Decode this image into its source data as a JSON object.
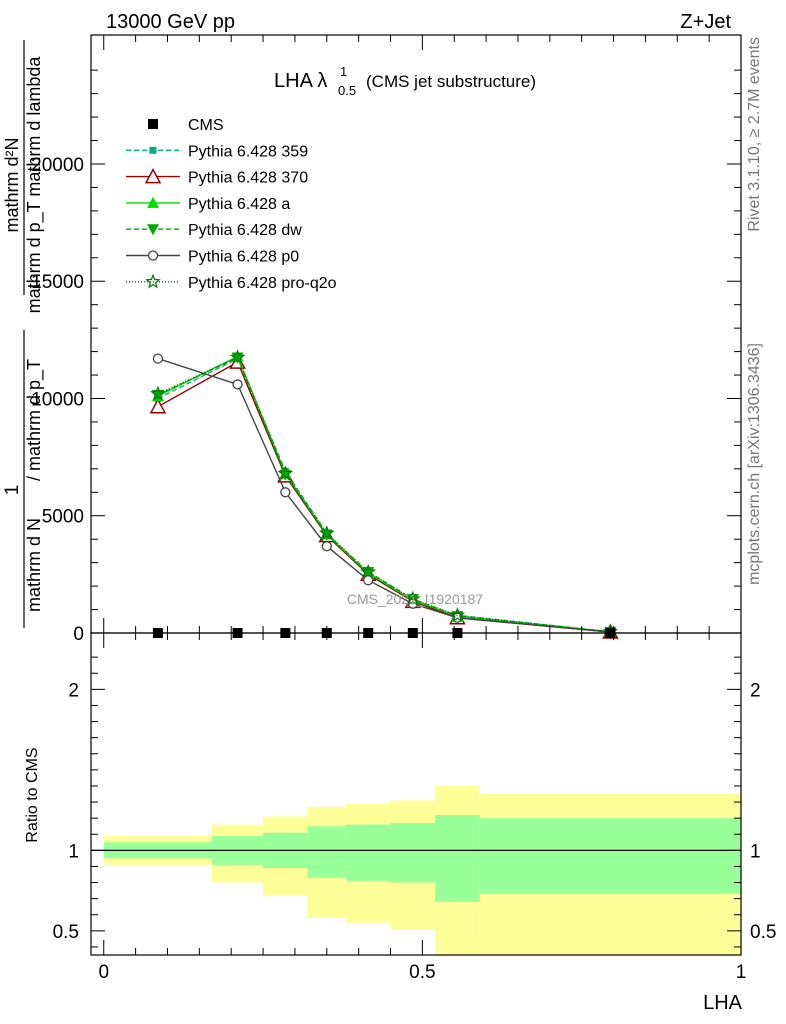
{
  "header": {
    "left": "13000 GeV pp",
    "right": "Z+Jet"
  },
  "side_labels": {
    "rivet": "Rivet 3.1.10, ≥ 2.7M events",
    "mcplots": "mcplots.cern.ch [arXiv:1306.3436]"
  },
  "watermark": "CMS_2021_I1920187",
  "chart_data": [
    {
      "type": "line",
      "title_main": "LHA λ",
      "title_sup": "1",
      "title_sub": "0.5",
      "title_suffix": "(CMS jet substructure)",
      "ylabel": {
        "left_num": "1",
        "left_den": "mathrm d N",
        "frac_num": "mathrm d²N",
        "frac_den": "mathrm d p_T mathrm d lambda",
        "mid": "/ mathrm d p_T"
      },
      "xlim": [
        -0.02,
        1.0
      ],
      "ylim": [
        0,
        25500
      ],
      "yticks": [
        0,
        5000,
        10000,
        15000,
        20000
      ],
      "ytick_labels": [
        "0",
        "5000",
        "10000",
        "15000",
        "20000"
      ],
      "x": [
        0.085,
        0.21,
        0.285,
        0.35,
        0.415,
        0.485,
        0.555,
        0.795
      ],
      "legend_position": "top-left",
      "series": [
        {
          "name": "CMS",
          "color": "#000000",
          "marker": "square",
          "dash": "",
          "values": [
            0,
            0,
            0,
            0,
            0,
            0,
            0,
            0
          ]
        },
        {
          "name": "Pythia 6.428 359",
          "color": "#00b37a",
          "marker": "smallsquare",
          "dash": "5,3",
          "values": [
            10000,
            11700,
            6900,
            4250,
            2550,
            1400,
            750,
            50
          ]
        },
        {
          "name": "Pythia 6.428 370",
          "color": "#990000",
          "marker": "triangle-open",
          "dash": "",
          "values": [
            9650,
            11550,
            6700,
            4150,
            2500,
            1350,
            650,
            40
          ]
        },
        {
          "name": "Pythia 6.428 a",
          "color": "#00dd00",
          "marker": "triangle",
          "dash": "",
          "values": [
            10100,
            11800,
            6800,
            4200,
            2550,
            1400,
            720,
            50
          ]
        },
        {
          "name": "Pythia 6.428 dw",
          "color": "#00aa00",
          "marker": "triangle-down",
          "dash": "5,3",
          "values": [
            10150,
            11750,
            6750,
            4200,
            2600,
            1450,
            720,
            50
          ]
        },
        {
          "name": "Pythia 6.428 p0",
          "color": "#444444",
          "marker": "circle-open",
          "dash": "",
          "values": [
            11700,
            10600,
            6000,
            3700,
            2250,
            1250,
            650,
            40
          ]
        },
        {
          "name": "Pythia 6.428 pro-q2o",
          "color": "#007700",
          "marker": "star",
          "dash": "1,2",
          "values": [
            10200,
            11750,
            6800,
            4250,
            2600,
            1450,
            750,
            50
          ]
        }
      ]
    },
    {
      "type": "area",
      "ylabel": "Ratio to CMS",
      "xlabel": "LHA",
      "xlim": [
        -0.02,
        1.0
      ],
      "ylim": [
        0.35,
        2.35
      ],
      "yticks": [
        0.5,
        1,
        2
      ],
      "ytick_labels": [
        "0.5",
        "1",
        "2"
      ],
      "xticks": [
        0,
        0.5,
        1
      ],
      "xtick_labels": [
        "0",
        "0.5",
        "1"
      ],
      "reference": 1,
      "bins": [
        {
          "x0": 0.0,
          "x1": 0.17,
          "inner": [
            0.95,
            1.05
          ],
          "outer": [
            0.91,
            1.09
          ]
        },
        {
          "x0": 0.17,
          "x1": 0.25,
          "inner": [
            0.91,
            1.09
          ],
          "outer": [
            0.8,
            1.16
          ]
        },
        {
          "x0": 0.25,
          "x1": 0.32,
          "inner": [
            0.89,
            1.11
          ],
          "outer": [
            0.72,
            1.21
          ]
        },
        {
          "x0": 0.32,
          "x1": 0.38,
          "inner": [
            0.83,
            1.15
          ],
          "outer": [
            0.58,
            1.27
          ]
        },
        {
          "x0": 0.38,
          "x1": 0.45,
          "inner": [
            0.81,
            1.16
          ],
          "outer": [
            0.55,
            1.29
          ]
        },
        {
          "x0": 0.45,
          "x1": 0.52,
          "inner": [
            0.8,
            1.17
          ],
          "outer": [
            0.51,
            1.31
          ]
        },
        {
          "x0": 0.52,
          "x1": 0.59,
          "inner": [
            0.68,
            1.22
          ],
          "outer": [
            0.35,
            1.4
          ]
        },
        {
          "x0": 0.59,
          "x1": 1.0,
          "inner": [
            0.73,
            1.2
          ],
          "outer": [
            0.35,
            1.35
          ]
        }
      ],
      "inner_color": "#99ff99",
      "outer_color": "#ffff99"
    }
  ]
}
